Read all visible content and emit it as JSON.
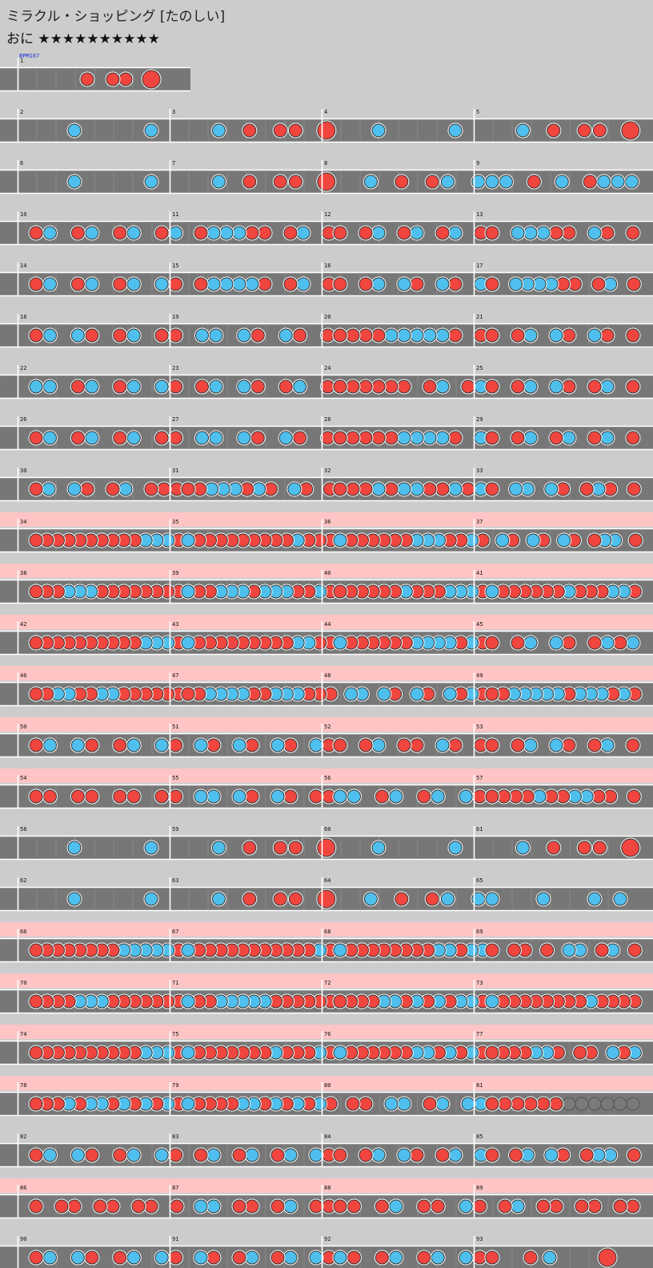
{
  "song": {
    "title": "ミラクル・ショッピング",
    "course_label": "[たのしい]"
  },
  "difficulty": {
    "label": "おに",
    "stars": "★★★★★★★★★★",
    "level": 10
  },
  "bpm_label": "BPM167",
  "colors": {
    "background": "#cccccc",
    "gogo_band": "#ffc4c4",
    "lane": "#777777",
    "lane_border": "#ffffff",
    "measure_line": "#ffffff",
    "don": "#f0463f",
    "ka": "#4fc0ee",
    "note_outline": "#333333",
    "roll": "#f5d32a"
  },
  "note_types": {
    "d": "don (red)",
    "k": "ka (blue)",
    "D": "big don",
    "K": "big ka",
    "R": "drumroll",
    "-": "rest"
  },
  "first_row": {
    "measure_number": "1",
    "measure": "----d-dd-D--"
  },
  "rows": [
    {
      "start": 2,
      "gogo": false,
      "measures": [
        "--k---k-",
        "--k-d-dd-D",
        "--k---k-",
        "--k-d-dd-D"
      ]
    },
    {
      "start": 6,
      "gogo": false,
      "measures": [
        "--k---k-",
        "--k-d-dd-D",
        "--k-d-dk-k",
        "kk-d-k-dkkk"
      ]
    },
    {
      "start": 10,
      "gogo": false,
      "measures": [
        "dk-dk-dk-dk",
        "-dkkkdd-dk-d",
        "d-dk-dk-dk-d",
        "d-kkkdd-kd-d"
      ]
    },
    {
      "start": 14,
      "gogo": false,
      "measures": [
        "dk-dk-dk-kd",
        "-dkkkkd-dk-d",
        "d-dk-kd-kd-k",
        "d-kkkkdd-dk-d"
      ]
    },
    {
      "start": 18,
      "gogo": false,
      "measures": [
        "dk-kd-dk-dd",
        "-kk-kd-kd-d",
        "ddddkkkkkd-d",
        "d-dk-kd-kd-d"
      ]
    },
    {
      "start": 22,
      "gogo": false,
      "measures": [
        "kk-dk-dk-kd",
        "-dk-kd-dk-d",
        "dddddd-dk-dk",
        "d-dk-kd-dk-d"
      ]
    },
    {
      "start": 26,
      "gogo": false,
      "measures": [
        "dk-dk-dk-dd",
        "-kk-kd-kd-d",
        "dddddkkkkd-k",
        "d-dk-dk-dk-d"
      ]
    },
    {
      "start": 30,
      "gogo": false,
      "measures": [
        "dk-kd-dk-ddd",
        "ddkkkdkd-kd-d",
        "dddkdkkddkdk",
        "d-kk-kd-dkd-d"
      ]
    },
    {
      "start": 34,
      "gogo": true,
      "measures": [
        "ddddddddddkkkd",
        "kdddddddddkddd",
        "kddddddkkkddkd",
        "-kd-kd-kd-dkk-d"
      ]
    },
    {
      "start": 38,
      "gogo": true,
      "measures": [
        "dddkkkdddddddd",
        "kddkkkdkkkddkd",
        "ddddddkdddkkkd",
        "kddddddkdddkkd"
      ]
    },
    {
      "start": 42,
      "gogo": true,
      "measures": [
        "ddddddddddkkkd",
        "kdddddddddkkdd",
        "kddddddkkkkdkd",
        "d-dk-kd-dkdk"
      ]
    },
    {
      "start": 46,
      "gogo": true,
      "measures": [
        "ddkkddkkdddddd",
        "ddkkkkddkkkddd",
        "-kk-kd-kd-kdkd",
        "ddkkkkkdkkkdkd"
      ]
    },
    {
      "start": 50,
      "gogo": true,
      "measures": [
        "dk-kd-dk-kd",
        "-kd-kd-kd-kd",
        "d-dk-dd-kd-d",
        "d-dk-kd-dk-d"
      ]
    },
    {
      "start": 54,
      "gogo": true,
      "measures": [
        "dd-dd-dd-dd",
        "-kk-kd-kd-dd",
        "kk-dk-dk-kd",
        "ddddkddkkdd-d"
      ]
    },
    {
      "start": 58,
      "gogo": false,
      "measures": [
        "--k---k-",
        "--k-d-dd-D",
        "--k---k-",
        "--k-d-dd-D"
      ]
    },
    {
      "start": 62,
      "gogo": false,
      "measures": [
        "--k---k-",
        "--k-d-dd-D",
        "--k-d-dk-k",
        "k-k-kk"
      ]
    },
    {
      "start": 66,
      "gogo": true,
      "measures": [
        "ddddddddkkkkkd",
        "kdddddddddddkd",
        "kddddddddkkdkk",
        "d-dd-d-kk-dk-d"
      ]
    },
    {
      "start": 70,
      "gogo": true,
      "measures": [
        "ddddkkkddddddd",
        "kddkkkkkdddddd",
        "ddddkkdkdkdkkd",
        "kddddddddkdddd"
      ]
    },
    {
      "start": 74,
      "gogo": true,
      "measures": [
        "ddddddddddkkkd",
        "kdddddddkdddkd",
        "kddddddkkdkdkd",
        "ddddkkd-dd-kdk"
      ]
    },
    {
      "start": 78,
      "gogo": true,
      "measures": [
        "dddkdkkdkdkdkd",
        "kddddkkdkdkdkd",
        "-dd-kk-dk-kk",
        "ddddddRRRRRR"
      ]
    },
    {
      "start": 82,
      "gogo": false,
      "measures": [
        "dk-kd-dk-kd",
        "-dk-dk-dk-kd",
        "d-dk-kd-dk-k",
        "d-dk-kd-dkk-d"
      ]
    },
    {
      "start": 86,
      "gogo": true,
      "measures": [
        "d-dd-dd-dd-d",
        "-kk-dd-dk-dd",
        "dd-dk-dd-kd",
        "-dk-dd-dd-dd"
      ]
    },
    {
      "start": 90,
      "gogo": false,
      "measures": [
        "dk-kd-dk-kd",
        "-kd-dk-dk-kd",
        "kd-dk-dk-kd",
        "d-dk--D-"
      ]
    }
  ]
}
